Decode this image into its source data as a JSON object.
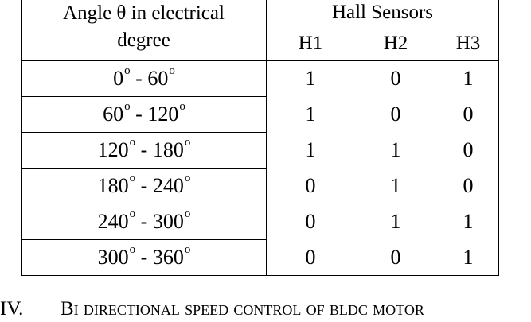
{
  "table": {
    "header": {
      "angle_line1": "Angle θ in electrical",
      "angle_line2": "degree",
      "hall_sensors": "Hall Sensors",
      "h1": "H1",
      "h2": "H2",
      "h3": "H3"
    },
    "degree_mark": "o",
    "rows": [
      {
        "from": "0",
        "to": "60",
        "h1": "1",
        "h2": "0",
        "h3": "1"
      },
      {
        "from": "60",
        "to": "120",
        "h1": "1",
        "h2": "0",
        "h3": "0"
      },
      {
        "from": "120",
        "to": "180",
        "h1": "1",
        "h2": "1",
        "h3": "0"
      },
      {
        "from": "180",
        "to": "240",
        "h1": "0",
        "h2": "1",
        "h3": "0"
      },
      {
        "from": "240",
        "to": "300",
        "h1": "0",
        "h2": "1",
        "h3": "1"
      },
      {
        "from": "300",
        "to": "360",
        "h1": "0",
        "h2": "0",
        "h3": "1"
      }
    ]
  },
  "section": {
    "number": "IV.",
    "title": "Bi directional speed control of bldc motor"
  }
}
